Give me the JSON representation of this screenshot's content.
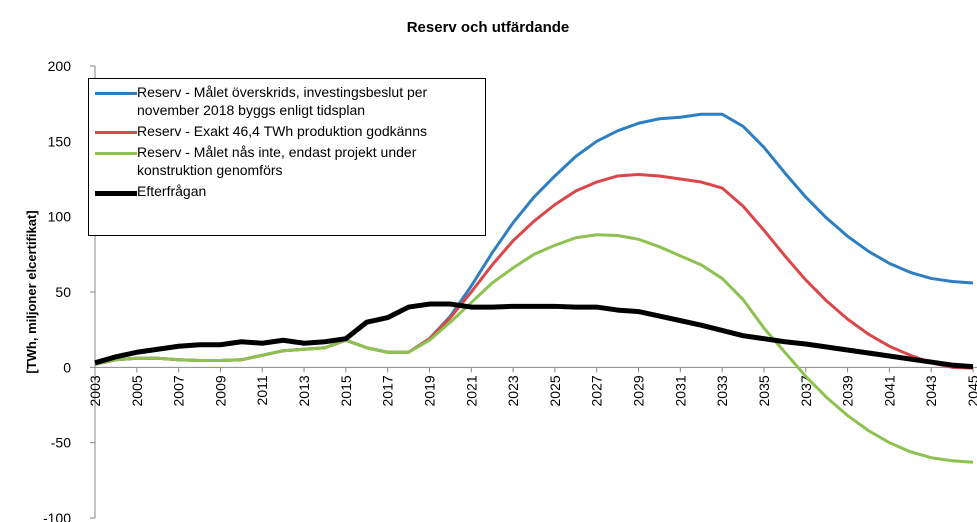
{
  "chart_data": {
    "type": "line",
    "title": "Reserv och utfärdande",
    "y_label": "[TWh, miljoner elcertifikat]",
    "x": [
      2003,
      2004,
      2005,
      2006,
      2007,
      2008,
      2009,
      2010,
      2011,
      2012,
      2013,
      2014,
      2015,
      2016,
      2017,
      2018,
      2019,
      2020,
      2021,
      2022,
      2023,
      2024,
      2025,
      2026,
      2027,
      2028,
      2029,
      2030,
      2031,
      2032,
      2033,
      2034,
      2035,
      2036,
      2037,
      2038,
      2039,
      2040,
      2041,
      2042,
      2043,
      2044,
      2045
    ],
    "xlim": [
      2003,
      2045
    ],
    "xticks": [
      2003,
      2005,
      2007,
      2009,
      2011,
      2013,
      2015,
      2017,
      2019,
      2021,
      2023,
      2025,
      2027,
      2029,
      2031,
      2033,
      2035,
      2037,
      2039,
      2041,
      2043,
      2045
    ],
    "ylim": [
      -100,
      200
    ],
    "yticks": [
      -100,
      -50,
      0,
      50,
      100,
      150,
      200
    ],
    "grid": false,
    "legend": "upper left",
    "series": [
      {
        "name": "Reserv - Målet överskrids, investingsbeslut per november 2018 byggs enligt tidsplan",
        "color": "#2e7fc1",
        "width": 3,
        "values": [
          2,
          5,
          6,
          6,
          5,
          4.5,
          4.5,
          5,
          8,
          11,
          12,
          13,
          18,
          13,
          10,
          10,
          19,
          34,
          54,
          76,
          96,
          113,
          127,
          140,
          150,
          157,
          162,
          165,
          166,
          168,
          168,
          160,
          146,
          129,
          113,
          99,
          87,
          77,
          69,
          63,
          59,
          57,
          56
        ]
      },
      {
        "name": "Reserv - Exakt 46,4 TWh produktion godkänns",
        "color": "#d9474a",
        "width": 3,
        "values": [
          2,
          5,
          6,
          6,
          5,
          4.5,
          4.5,
          5,
          8,
          11,
          12,
          13,
          18,
          13,
          10,
          10,
          19,
          33,
          50,
          68,
          84,
          97,
          108,
          117,
          123,
          127,
          128,
          127,
          125,
          123,
          119,
          107,
          91,
          74,
          58,
          44,
          32,
          22,
          14,
          8,
          3,
          0,
          -0.5
        ]
      },
      {
        "name": "Reserv - Målet nås inte, endast projekt under konstruktion genomförs",
        "color": "#8dc150",
        "width": 3,
        "values": [
          2,
          5,
          6,
          6,
          5,
          4.5,
          4.5,
          5,
          8,
          11,
          12,
          13,
          18,
          13,
          10,
          10,
          18,
          30,
          43,
          56,
          66,
          75,
          81,
          86,
          88,
          87.5,
          85,
          80,
          74,
          68,
          59,
          45,
          26,
          10,
          -6,
          -20,
          -32,
          -42,
          -50,
          -56,
          -60,
          -62,
          -63
        ]
      },
      {
        "name": "Efterfrågan",
        "color": "#000000",
        "width": 5,
        "values": [
          3,
          7,
          10,
          12,
          14,
          15,
          15,
          17,
          16,
          18,
          16,
          17,
          19,
          30,
          33,
          40,
          42,
          42,
          40,
          40,
          40.5,
          40.5,
          40.5,
          40,
          40,
          38,
          37,
          34,
          31,
          28,
          24.5,
          21,
          19,
          17,
          15.5,
          13.5,
          11.5,
          9.5,
          7.5,
          5.5,
          3.5,
          1.5,
          0.5
        ]
      }
    ]
  }
}
